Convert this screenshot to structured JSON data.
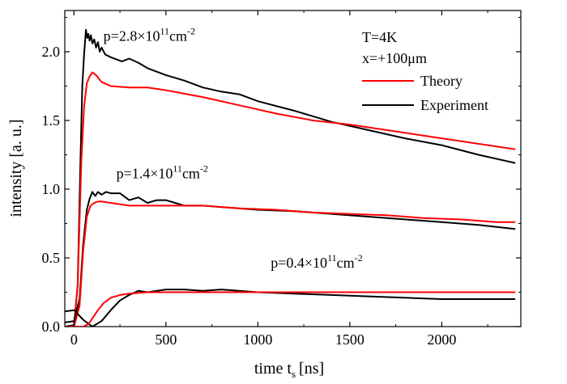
{
  "chart_data": {
    "type": "line",
    "xlabel": "time t",
    "xlabel_sub": "s",
    "xlabel_unit": "[ns]",
    "ylabel": "intensity [a. u.]",
    "xlim": [
      -50,
      2430
    ],
    "ylim": [
      0,
      2.3
    ],
    "xticks": [
      0,
      500,
      1000,
      1500,
      2000
    ],
    "xtick_labels": [
      "0",
      "500",
      "1000",
      "1500",
      "2000"
    ],
    "yticks": [
      0.0,
      0.5,
      1.0,
      1.5,
      2.0
    ],
    "ytick_labels": [
      "0.0",
      "0.5",
      "1.0",
      "1.5",
      "2.0"
    ],
    "legend": {
      "location": "top-right",
      "headers": [
        "T=4K",
        "x=+100μm"
      ],
      "entries": [
        {
          "label": "Theory",
          "color": "#ff0000"
        },
        {
          "label": "Experiment",
          "color": "#000000"
        }
      ]
    },
    "annotations": [
      {
        "base": "p=2.8×10",
        "sup1": "11",
        "mid": "cm",
        "sup2": "-2",
        "x": 160,
        "y": 2.08
      },
      {
        "base": "p=1.4×10",
        "sup1": "11",
        "mid": "cm",
        "sup2": "-2",
        "x": 230,
        "y": 1.08
      },
      {
        "base": "p=0.4×10",
        "sup1": "11",
        "mid": "cm",
        "sup2": "-2",
        "x": 1070,
        "y": 0.43
      }
    ],
    "series": [
      {
        "name": "Experiment",
        "group": "p=2.8",
        "color": "#000000",
        "x": [
          -50,
          0,
          20,
          35,
          45,
          55,
          65,
          72,
          78,
          85,
          92,
          100,
          110,
          120,
          130,
          140,
          150,
          170,
          200,
          260,
          300,
          350,
          400,
          500,
          600,
          700,
          800,
          900,
          1000,
          1200,
          1400,
          1600,
          1800,
          2000,
          2200,
          2400
        ],
        "y": [
          0.0,
          0.01,
          0.3,
          1.2,
          1.75,
          1.98,
          2.16,
          2.1,
          2.13,
          2.08,
          2.12,
          2.06,
          2.09,
          2.03,
          2.07,
          2.0,
          2.03,
          1.98,
          1.96,
          1.93,
          1.95,
          1.92,
          1.88,
          1.83,
          1.79,
          1.74,
          1.71,
          1.69,
          1.64,
          1.57,
          1.49,
          1.43,
          1.37,
          1.32,
          1.25,
          1.19
        ]
      },
      {
        "name": "Theory",
        "group": "p=2.8",
        "color": "#ff0000",
        "x": [
          -50,
          0,
          20,
          40,
          55,
          70,
          85,
          100,
          120,
          150,
          200,
          300,
          400,
          500,
          700,
          900,
          1100,
          1300,
          1500,
          1700,
          1900,
          2100,
          2300,
          2400
        ],
        "y": [
          0.0,
          0.0,
          0.3,
          1.2,
          1.6,
          1.77,
          1.82,
          1.85,
          1.83,
          1.78,
          1.75,
          1.74,
          1.74,
          1.72,
          1.67,
          1.61,
          1.55,
          1.5,
          1.47,
          1.43,
          1.39,
          1.35,
          1.31,
          1.29
        ]
      },
      {
        "name": "Experiment",
        "group": "p=1.4",
        "color": "#000000",
        "x": [
          -50,
          0,
          30,
          50,
          70,
          85,
          100,
          115,
          130,
          150,
          175,
          200,
          250,
          300,
          350,
          400,
          450,
          500,
          550,
          600,
          700,
          800,
          1000,
          1200,
          1400,
          1600,
          1800,
          2000,
          2200,
          2400
        ],
        "y": [
          0.03,
          0.04,
          0.2,
          0.6,
          0.85,
          0.93,
          0.98,
          0.95,
          0.98,
          0.96,
          0.98,
          0.97,
          0.97,
          0.92,
          0.94,
          0.9,
          0.92,
          0.92,
          0.9,
          0.88,
          0.88,
          0.87,
          0.85,
          0.84,
          0.82,
          0.8,
          0.78,
          0.76,
          0.74,
          0.71
        ]
      },
      {
        "name": "Theory",
        "group": "p=1.4",
        "color": "#ff0000",
        "x": [
          -50,
          0,
          30,
          50,
          70,
          90,
          110,
          130,
          150,
          200,
          300,
          400,
          500,
          700,
          900,
          1100,
          1300,
          1500,
          1700,
          1900,
          2100,
          2300,
          2400
        ],
        "y": [
          0.0,
          0.0,
          0.15,
          0.55,
          0.8,
          0.88,
          0.9,
          0.91,
          0.91,
          0.9,
          0.88,
          0.88,
          0.88,
          0.88,
          0.86,
          0.85,
          0.83,
          0.82,
          0.81,
          0.79,
          0.78,
          0.76,
          0.76
        ]
      },
      {
        "name": "Experiment",
        "group": "p=0.4",
        "color": "#000000",
        "x": [
          -50,
          0,
          50,
          100,
          150,
          200,
          250,
          300,
          350,
          400,
          450,
          500,
          600,
          700,
          800,
          900,
          1000,
          1200,
          1400,
          1600,
          1800,
          2000,
          2200,
          2400
        ],
        "y": [
          0.11,
          0.12,
          0.05,
          0.0,
          0.04,
          0.12,
          0.19,
          0.23,
          0.26,
          0.25,
          0.26,
          0.27,
          0.27,
          0.26,
          0.27,
          0.26,
          0.25,
          0.24,
          0.23,
          0.22,
          0.21,
          0.2,
          0.2,
          0.2
        ]
      },
      {
        "name": "Theory",
        "group": "p=0.4",
        "color": "#ff0000",
        "x": [
          -50,
          0,
          50,
          80,
          100,
          130,
          160,
          200,
          250,
          300,
          400,
          500,
          700,
          900,
          1200,
          1500,
          1800,
          2100,
          2400
        ],
        "y": [
          0.0,
          0.0,
          0.0,
          0.02,
          0.06,
          0.12,
          0.17,
          0.21,
          0.23,
          0.24,
          0.25,
          0.25,
          0.25,
          0.25,
          0.25,
          0.25,
          0.25,
          0.25,
          0.25
        ]
      }
    ]
  }
}
